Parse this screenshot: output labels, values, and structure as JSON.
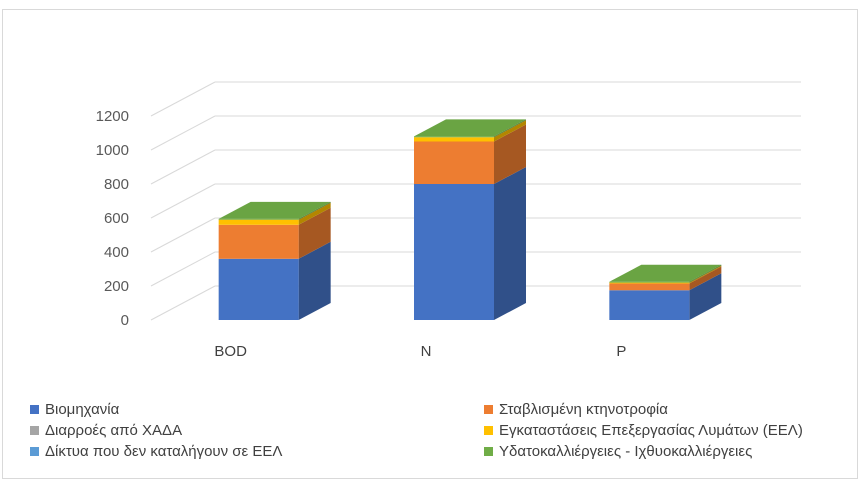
{
  "chart_data": {
    "type": "bar",
    "variant": "3d-stacked-column",
    "title": "",
    "xlabel": "",
    "ylabel": "",
    "categories": [
      "BOD",
      "N",
      "P"
    ],
    "yticks": [
      "0",
      "200",
      "400",
      "600",
      "800",
      "1000",
      "1200"
    ],
    "ylim": [
      0,
      1200
    ],
    "grid": true,
    "legend_position": "bottom",
    "series": [
      {
        "name": "Βιομηχανία",
        "color": "#4472c4",
        "values": [
          360,
          800,
          175
        ]
      },
      {
        "name": "Σταβλισμένη κτηνοτροφία",
        "color": "#ed7d31",
        "values": [
          200,
          250,
          40
        ]
      },
      {
        "name": "Διαρροές από ΧΑΔΑ",
        "color": "#a5a5a5",
        "values": [
          0,
          0,
          0
        ]
      },
      {
        "name": "Εγκαταστάσεις Επεξεργασίας Λυμάτων (ΕΕΛ)",
        "color": "#ffc000",
        "values": [
          30,
          25,
          5
        ]
      },
      {
        "name": "Δίκτυα που δεν καταλήγουν σε  ΕΕΛ",
        "color": "#5b9bd5",
        "values": [
          0,
          0,
          0
        ]
      },
      {
        "name": "Υδατοκαλλιέργειες - Ιχθυοκαλλιέργειες",
        "color": "#70ad47",
        "values": [
          5,
          5,
          5
        ]
      }
    ]
  }
}
